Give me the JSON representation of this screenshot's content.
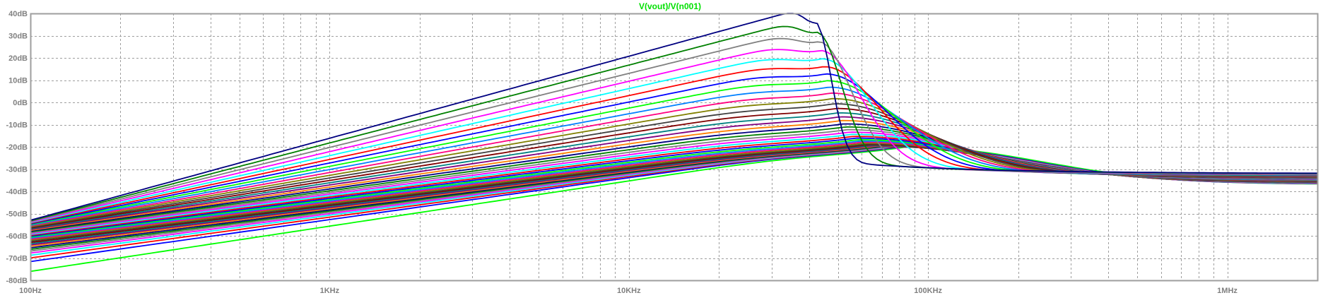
{
  "chart_data": {
    "type": "line",
    "title": "V(vout)/V(n001)",
    "title_color": "#00e000",
    "x_scale": "log",
    "xlim": [
      100,
      2000000
    ],
    "ylim": [
      -80,
      40
    ],
    "grid": true,
    "grid_color": "#9e9e9e",
    "frame_color": "#9e9e9e",
    "tick_label_color": "#808080",
    "x_major_ticks": [
      {
        "value": 100,
        "label": "100Hz"
      },
      {
        "value": 1000,
        "label": "1KHz"
      },
      {
        "value": 10000,
        "label": "10KHz"
      },
      {
        "value": 100000,
        "label": "100KHz"
      },
      {
        "value": 1000000,
        "label": "1MHz"
      }
    ],
    "y_ticks": [
      {
        "value": 40,
        "label": "40dB"
      },
      {
        "value": 30,
        "label": "30dB"
      },
      {
        "value": 20,
        "label": "20dB"
      },
      {
        "value": 10,
        "label": "10dB"
      },
      {
        "value": 0,
        "label": "0dB"
      },
      {
        "value": -10,
        "label": "-10dB"
      },
      {
        "value": -20,
        "label": "-20dB"
      },
      {
        "value": -30,
        "label": "-30dB"
      },
      {
        "value": -40,
        "label": "-40dB"
      },
      {
        "value": -50,
        "label": "-50dB"
      },
      {
        "value": -60,
        "label": "-60dB"
      },
      {
        "value": -70,
        "label": "-70dB"
      },
      {
        "value": -80,
        "label": "-80dB"
      }
    ],
    "sweep": {
      "step_count": 40,
      "resonance_hz": 42000,
      "low_freq_start_db": [
        -76,
        -53
      ],
      "peak_db": [
        -20,
        36
      ],
      "peak_freq_hz": [
        85000,
        42000
      ],
      "high_freq_end_db": [
        -37,
        -32
      ],
      "series_colors": [
        "#00ff00",
        "#0000ff",
        "#ff0000",
        "#00ffff",
        "#ff00ff",
        "#808080",
        "#008000",
        "#000080",
        "#ff8000",
        "#800080",
        "#008080",
        "#800000",
        "#404040",
        "#808000",
        "#ff0080",
        "#0080ff"
      ]
    }
  }
}
